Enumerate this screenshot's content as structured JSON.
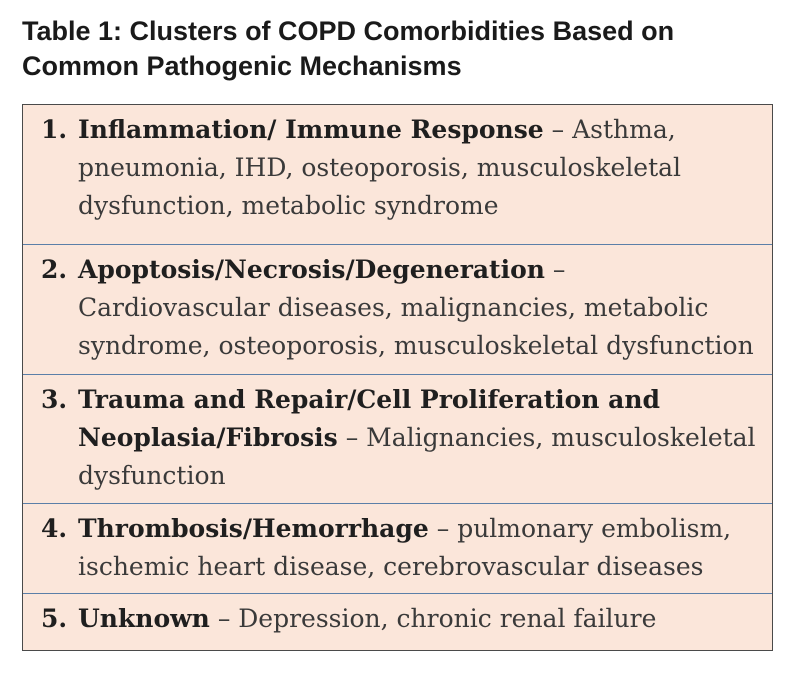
{
  "title": "Table 1: Clusters of COPD Comorbidities Based on Common Pathogenic Mechanisms",
  "rows": [
    {
      "number": "1.",
      "heading": "Inflammation/ Immune Response",
      "separator": "–",
      "description": "Asthma, pneumonia, IHD, osteoporosis, musculoskeletal dysfunction, metabolic syndrome"
    },
    {
      "number": "2.",
      "heading": "Apoptosis/Necrosis/Degeneration",
      "separator": "–",
      "description": "Cardiovascular diseases, malignancies, metabolic syndrome, osteoporosis, musculoskeletal dysfunction"
    },
    {
      "number": "3.",
      "heading": "Trauma and Repair/Cell Proliferation and Neoplasia/Fibrosis",
      "separator": "–",
      "description": "Malignancies, musculoskeletal dysfunction"
    },
    {
      "number": "4.",
      "heading": "Thrombosis/Hemorrhage",
      "separator": "–",
      "description": "pulmonary embolism, ischemic heart disease, cerebrovascular diseases"
    },
    {
      "number": "5.",
      "heading": "Unknown",
      "separator": "–",
      "description": "Depression, chronic renal failure"
    }
  ],
  "colors": {
    "table_background": "#fbe6da",
    "row_divider": "#5b7fa8",
    "border": "#4a4a4a"
  }
}
